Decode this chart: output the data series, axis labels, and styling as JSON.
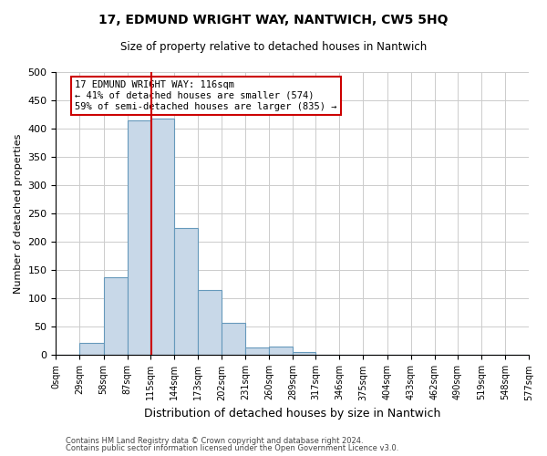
{
  "title": "17, EDMUND WRIGHT WAY, NANTWICH, CW5 5HQ",
  "subtitle": "Size of property relative to detached houses in Nantwich",
  "xlabel": "Distribution of detached houses by size in Nantwich",
  "ylabel": "Number of detached properties",
  "bin_edges": [
    0,
    29,
    58,
    87,
    115,
    144,
    173,
    202,
    231,
    260,
    289,
    317,
    346,
    375,
    404,
    433,
    462,
    490,
    519,
    548,
    577
  ],
  "bar_heights": [
    0,
    22,
    138,
    415,
    418,
    224,
    115,
    57,
    14,
    16,
    6,
    0,
    1,
    0,
    1,
    0,
    0,
    1,
    0,
    1
  ],
  "bar_color": "#c8d8e8",
  "bar_edgecolor": "#6699bb",
  "property_value": 116,
  "vline_color": "#cc0000",
  "annotation_line1": "17 EDMUND WRIGHT WAY: 116sqm",
  "annotation_line2": "← 41% of detached houses are smaller (574)",
  "annotation_line3": "59% of semi-detached houses are larger (835) →",
  "annotation_box_edgecolor": "#cc0000",
  "annotation_box_facecolor": "#ffffff",
  "ylim": [
    0,
    500
  ],
  "yticks": [
    0,
    50,
    100,
    150,
    200,
    250,
    300,
    350,
    400,
    450,
    500
  ],
  "grid_color": "#cccccc",
  "background_color": "#ffffff",
  "footer1": "Contains HM Land Registry data © Crown copyright and database right 2024.",
  "footer2": "Contains public sector information licensed under the Open Government Licence v3.0.",
  "tick_labels": [
    "0sqm",
    "29sqm",
    "58sqm",
    "87sqm",
    "115sqm",
    "144sqm",
    "173sqm",
    "202sqm",
    "231sqm",
    "260sqm",
    "289sqm",
    "317sqm",
    "346sqm",
    "375sqm",
    "404sqm",
    "433sqm",
    "462sqm",
    "490sqm",
    "519sqm",
    "548sqm",
    "577sqm"
  ]
}
